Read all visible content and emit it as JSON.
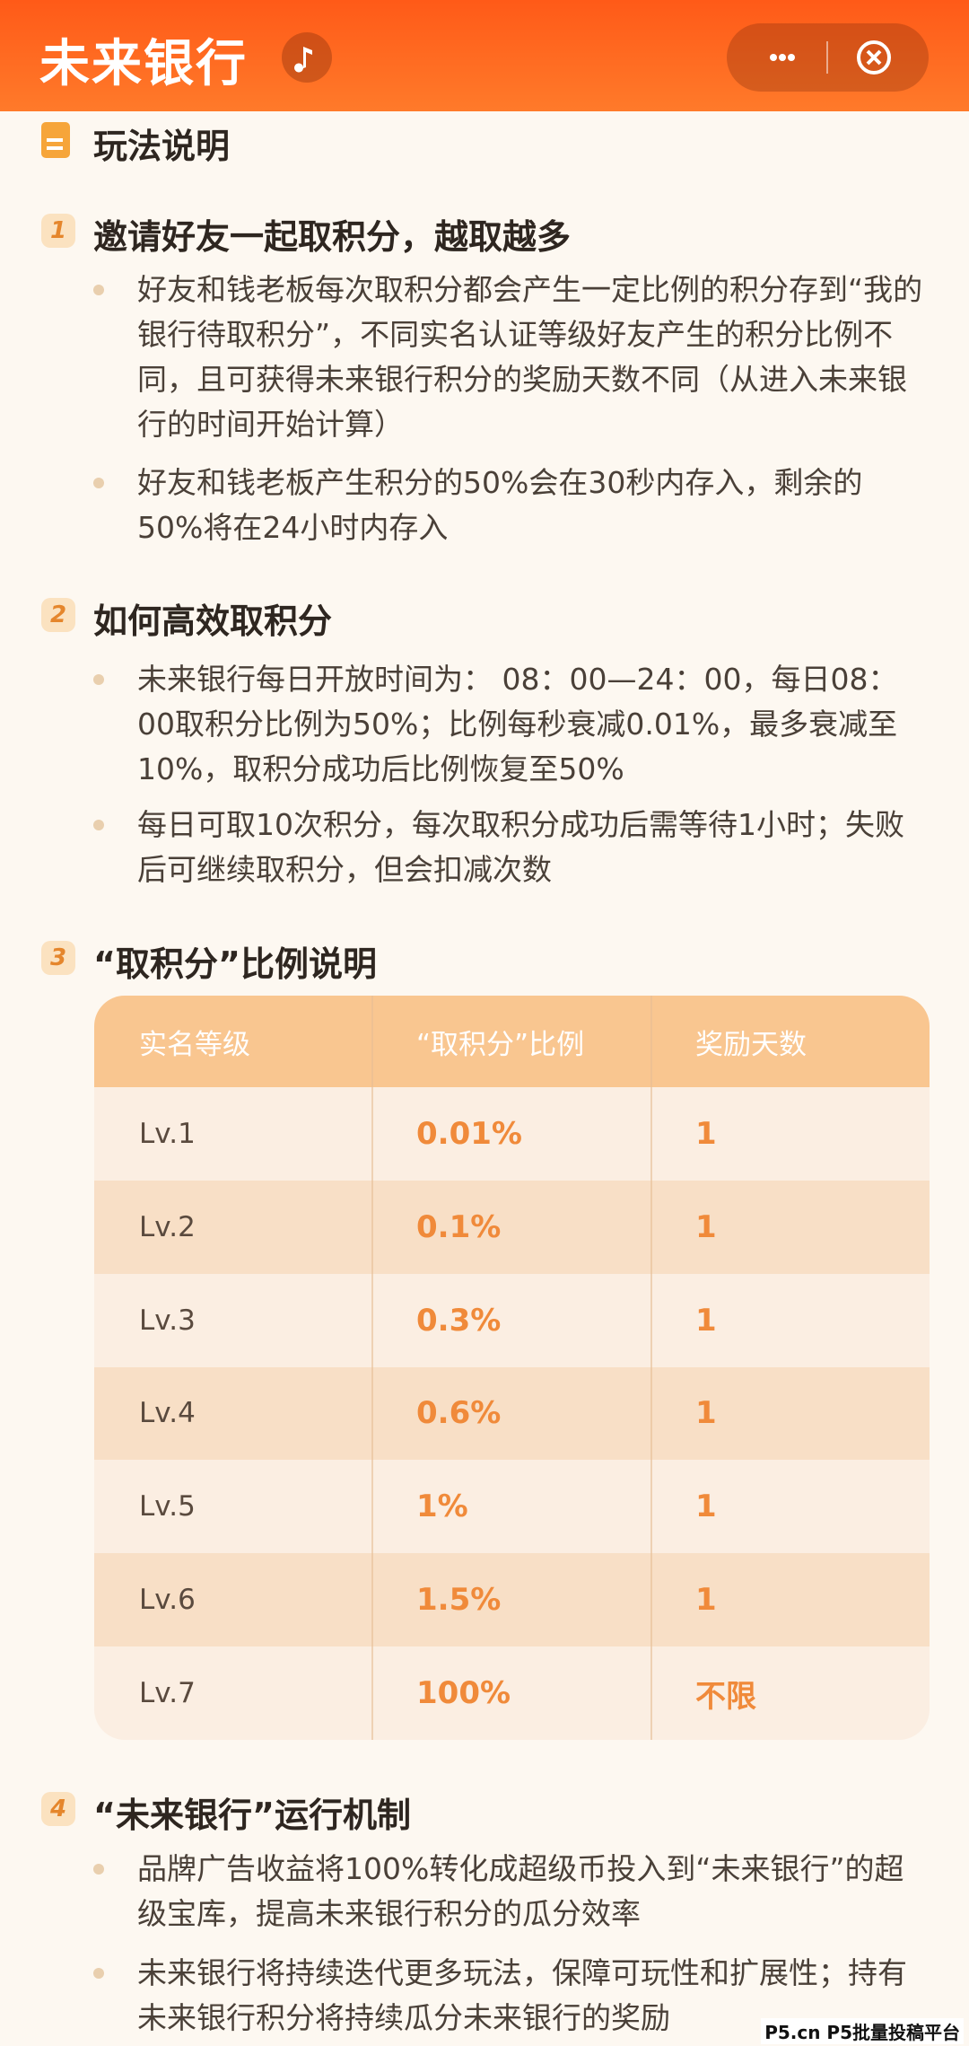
{
  "header": {
    "title": "未来银行"
  },
  "intro": {
    "title": "玩法说明"
  },
  "sections": [
    {
      "number": "1",
      "title": "邀请好友一起取积分，越取越多",
      "bullets": [
        "好友和钱老板每次取积分都会产生一定比例的积分存到“我的银行待取积分”，不同实名认证等级好友产生的积分比例不同，且可获得未来银行积分的奖励天数不同（从进入未来银行的时间开始计算）",
        "好友和钱老板产生积分的50%会在30秒内存入，剩余的50%将在24小时内存入"
      ]
    },
    {
      "number": "2",
      "title": "如何高效取积分",
      "bullets": [
        "未来银行每日开放时间为： 08：00—24：00，每日08：00取积分比例为50%；比例每秒衰减0.01%，最多衰减至10%，取积分成功后比例恢复至50%",
        "每日可取10次积分，每次取积分成功后需等待1小时；失败后可继续取积分，但会扣减次数"
      ]
    },
    {
      "number": "3",
      "title": "“取积分”比例说明",
      "table": {
        "columns": [
          "实名等级",
          "“取积分”比例",
          "奖励天数"
        ],
        "rows": [
          [
            "Lv.1",
            "0.01%",
            "1"
          ],
          [
            "Lv.2",
            "0.1%",
            "1"
          ],
          [
            "Lv.3",
            "0.3%",
            "1"
          ],
          [
            "Lv.4",
            "0.6%",
            "1"
          ],
          [
            "Lv.5",
            "1%",
            "1"
          ],
          [
            "Lv.6",
            "1.5%",
            "1"
          ],
          [
            "Lv.7",
            "100%",
            "不限"
          ]
        ]
      }
    },
    {
      "number": "4",
      "title": "“未来银行”运行机制",
      "bullets": [
        "品牌广告收益将100%转化成超级币投入到“未来银行”的超级宝库，提高未来银行积分的瓜分效率",
        "未来银行将持续迭代更多玩法，保障可玩性和扩展性；持有未来银行积分将持续瓜分未来银行的奖励"
      ]
    }
  ],
  "watermark": "P5.cn P5批量投稿平台"
}
